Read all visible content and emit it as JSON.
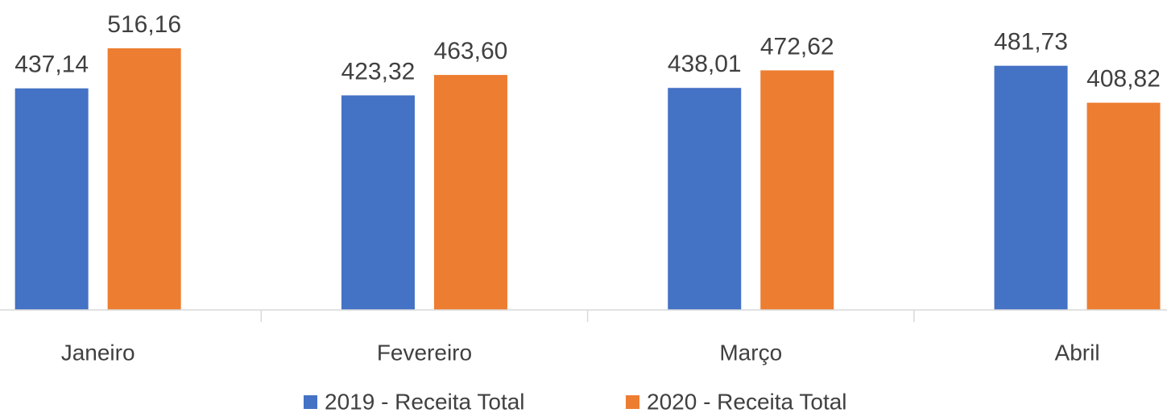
{
  "chart_data": {
    "type": "bar",
    "categories": [
      "Janeiro",
      "Fevereiro",
      "Março",
      "Abril"
    ],
    "series": [
      {
        "name": "2019 - Receita Total",
        "color": "#4472c4",
        "values": [
          437.14,
          423.32,
          438.01,
          481.73
        ],
        "value_labels": [
          "437,14",
          "423,32",
          "438,01",
          "481,73"
        ]
      },
      {
        "name": "2020 - Receita Total",
        "color": "#ed7d31",
        "values": [
          516.16,
          463.6,
          472.62,
          408.82
        ],
        "value_labels": [
          "516,16",
          "463,60",
          "472,62",
          "408,82"
        ]
      }
    ],
    "legend": "bottom"
  }
}
